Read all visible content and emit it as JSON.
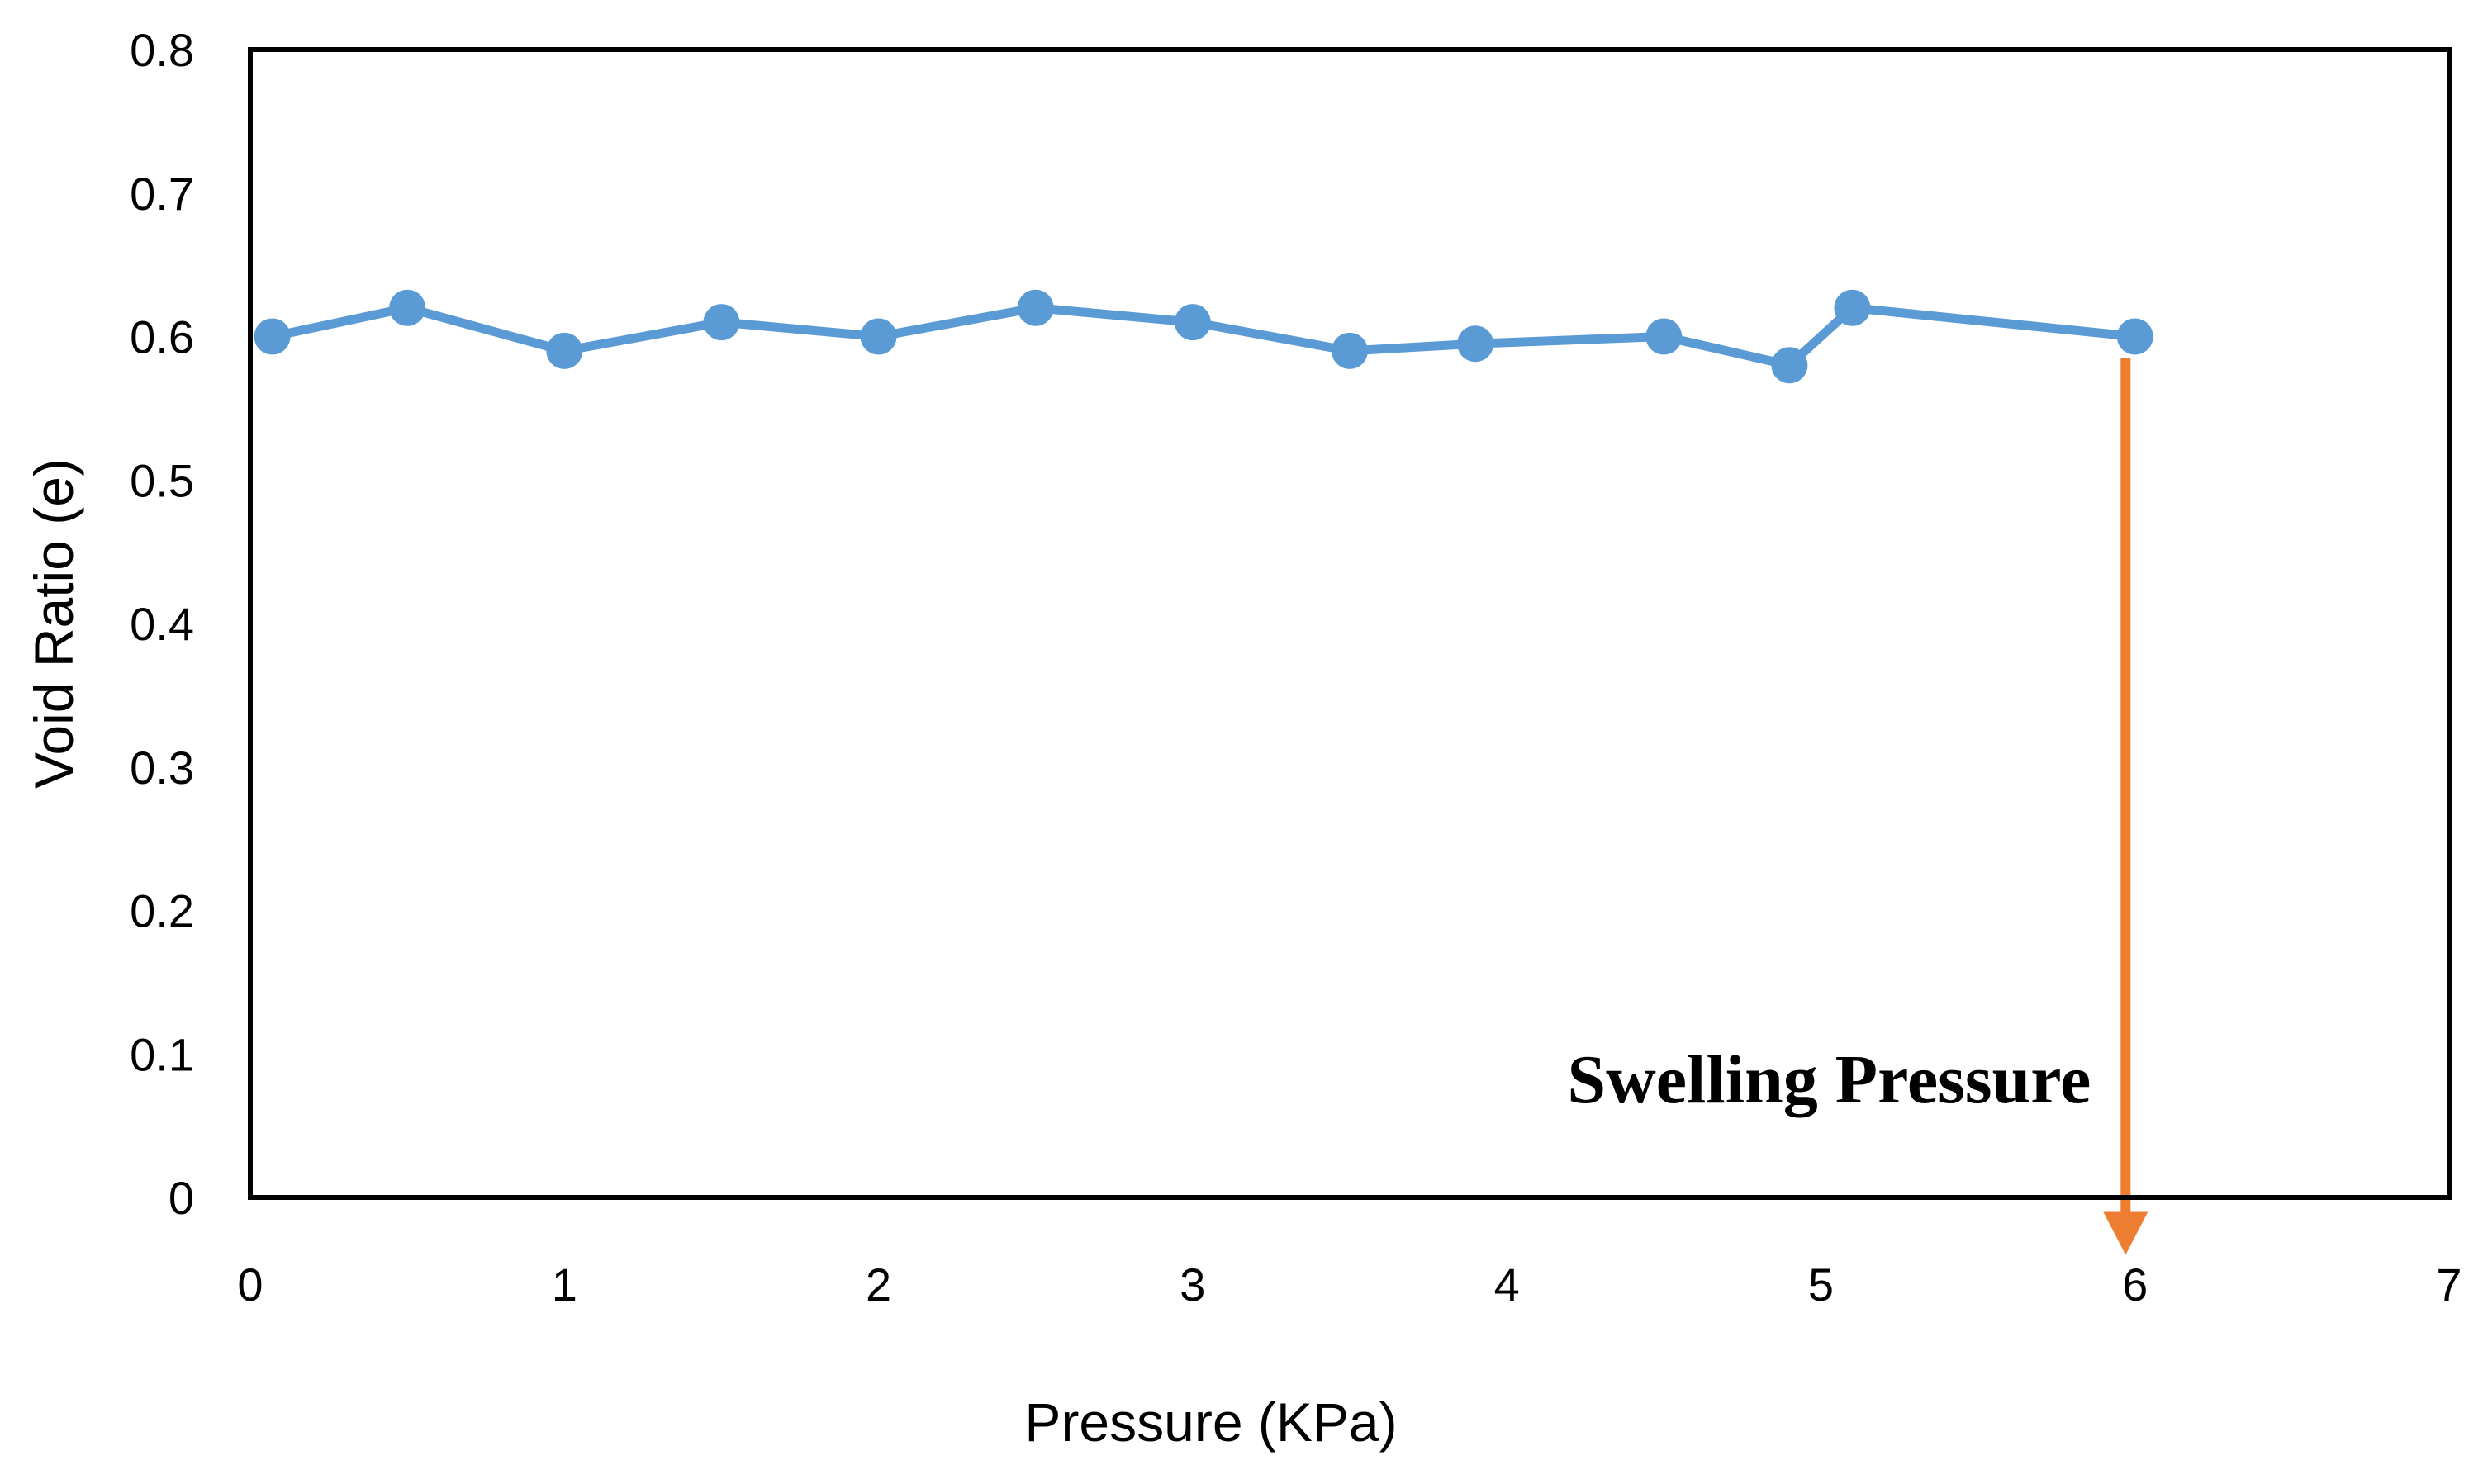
{
  "chart_data": {
    "type": "line",
    "xlabel": "Pressure (KPa)",
    "ylabel": "Void Ratio (e)",
    "xlim": [
      0,
      7
    ],
    "ylim": [
      0,
      0.8
    ],
    "x_ticks": [
      "0",
      "1",
      "2",
      "3",
      "4",
      "5",
      "6",
      "7"
    ],
    "y_ticks": [
      "0",
      "0.1",
      "0.2",
      "0.3",
      "0.4",
      "0.5",
      "0.6",
      "0.7",
      "0.8"
    ],
    "grid": false,
    "legend": "none",
    "series": [
      {
        "color": "#5b9bd5",
        "marker": "circle",
        "points": [
          {
            "x": 0.07,
            "y": 0.6
          },
          {
            "x": 0.5,
            "y": 0.62
          },
          {
            "x": 1.0,
            "y": 0.59
          },
          {
            "x": 1.5,
            "y": 0.61
          },
          {
            "x": 2.0,
            "y": 0.6
          },
          {
            "x": 2.5,
            "y": 0.62
          },
          {
            "x": 3.0,
            "y": 0.61
          },
          {
            "x": 3.5,
            "y": 0.59
          },
          {
            "x": 3.9,
            "y": 0.595
          },
          {
            "x": 4.5,
            "y": 0.6
          },
          {
            "x": 4.9,
            "y": 0.58
          },
          {
            "x": 5.1,
            "y": 0.62
          },
          {
            "x": 6.0,
            "y": 0.6
          }
        ]
      }
    ],
    "annotations": [
      {
        "text": "Swelling Pressure",
        "arrow_color": "#ed7d31",
        "arrow_x": 5.97,
        "arrow_from_y": 0.585,
        "arrow_to_y": -0.04
      }
    ]
  }
}
